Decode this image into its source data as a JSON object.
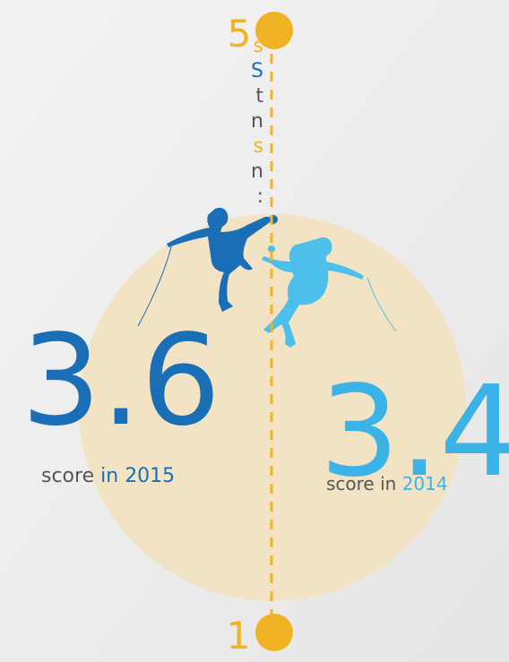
{
  "side_text": [
    {
      "text": "s",
      "color": "#f0b323"
    },
    {
      "text": "S",
      "color": "#1a6eb5"
    },
    {
      "text": "t",
      "color": "#555555"
    },
    {
      "text": "n",
      "color": "#555555"
    },
    {
      "text": "s",
      "color": "#f0b323"
    },
    {
      "text": "n",
      "color": "#555555"
    },
    {
      "text": ":",
      "color": "#555555"
    }
  ],
  "scale": {
    "top": "5",
    "bottom": "1"
  },
  "scores": [
    {
      "value": "3.6",
      "label": "score",
      "connector": "in",
      "year": "2015",
      "color": "#1a6eb5"
    },
    {
      "value": "3.4",
      "label": "score",
      "connector": "in",
      "year": "2014",
      "color": "#3bb3e6"
    }
  ]
}
